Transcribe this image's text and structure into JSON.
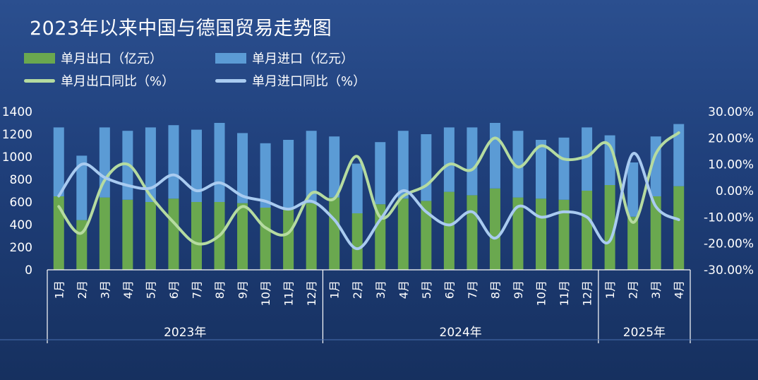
{
  "title": "2023年以来中国与德国贸易走势图",
  "colors": {
    "export_bar": "#6aa84f",
    "import_bar": "#5b9bd5",
    "export_yoy_line": "#b5dba0",
    "import_yoy_line": "#a9cbf0",
    "axis_text": "#ffffff"
  },
  "legend": {
    "export": "单月出口（亿元）",
    "import": "单月进口（亿元）",
    "export_yoy": "单月出口同比（%）",
    "import_yoy": "单月进口同比（%）"
  },
  "chart_data": {
    "type": "bar",
    "title": "2023年以来中国与德国贸易走势图",
    "stacked": true,
    "categories": [
      "1月",
      "2月",
      "3月",
      "4月",
      "5月",
      "6月",
      "7月",
      "8月",
      "9月",
      "10月",
      "11月",
      "12月",
      "1月",
      "2月",
      "3月",
      "4月",
      "5月",
      "6月",
      "7月",
      "8月",
      "9月",
      "10月",
      "11月",
      "12月",
      "1月",
      "2月",
      "3月",
      "4月"
    ],
    "groups": [
      {
        "label": "2023年",
        "count": 12
      },
      {
        "label": "2024年",
        "count": 12
      },
      {
        "label": "2025年",
        "count": 4
      }
    ],
    "y_left": {
      "min": 0,
      "max": 1400,
      "ticks": [
        "0",
        "200",
        "400",
        "600",
        "800",
        "1000",
        "1200",
        "1400"
      ]
    },
    "y_right": {
      "min": -30,
      "max": 30,
      "ticks": [
        "-30.00%",
        "-20.00%",
        "-10.00%",
        "0.00%",
        "10.00%",
        "20.00%",
        "30.00%"
      ]
    },
    "series": [
      {
        "name": "单月出口（亿元）",
        "kind": "bar",
        "axis": "left",
        "values": [
          650,
          440,
          640,
          620,
          600,
          630,
          600,
          600,
          590,
          550,
          540,
          590,
          640,
          500,
          580,
          630,
          610,
          690,
          660,
          720,
          640,
          630,
          620,
          700,
          750,
          470,
          650,
          740
        ]
      },
      {
        "name": "单月进口（亿元）",
        "kind": "bar",
        "axis": "left",
        "values": [
          610,
          570,
          620,
          610,
          660,
          650,
          640,
          700,
          620,
          570,
          610,
          640,
          540,
          440,
          550,
          600,
          590,
          570,
          600,
          580,
          590,
          520,
          550,
          560,
          440,
          480,
          530,
          550
        ]
      },
      {
        "name": "单月出口同比（%）",
        "kind": "line",
        "axis": "right",
        "values": [
          -6,
          -16,
          4,
          10,
          -2,
          -12,
          -20,
          -17,
          -6,
          -14,
          -16,
          -1,
          -3,
          13,
          -10,
          -2,
          2,
          10,
          8,
          20,
          9,
          17,
          12,
          13,
          17,
          -12,
          14,
          22
        ]
      },
      {
        "name": "单月进口同比（%）",
        "kind": "line",
        "axis": "right",
        "values": [
          -2,
          10,
          5,
          2,
          1,
          6,
          0,
          3,
          -2,
          -4,
          -7,
          -4,
          -11,
          -22,
          -11,
          0,
          -8,
          -13,
          -8,
          -18,
          -6,
          -10,
          -8,
          -10,
          -19,
          14,
          -6,
          -11
        ]
      }
    ]
  }
}
